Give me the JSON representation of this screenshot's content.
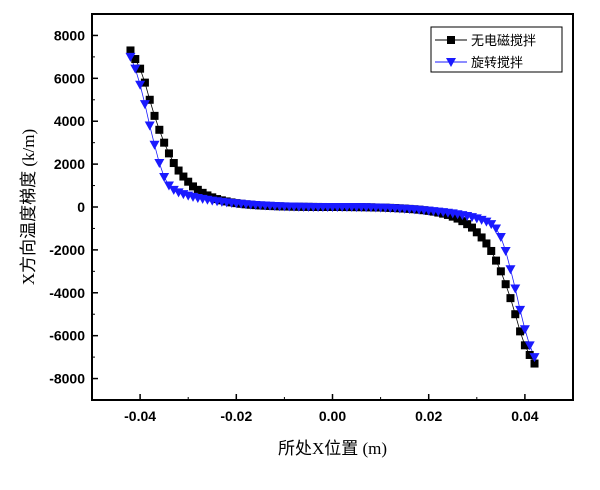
{
  "chart_data": {
    "type": "scatter",
    "title": "",
    "xlabel": "所处X位置 (m)",
    "ylabel": "X方向温度梯度 (k/m)",
    "xlim": [
      -0.05,
      0.05
    ],
    "ylim": [
      -9000,
      9000
    ],
    "xticks": [
      -0.04,
      -0.02,
      0.0,
      0.02,
      0.04
    ],
    "xtick_labels": [
      "-0.04",
      "-0.02",
      "0.00",
      "0.02",
      "0.04"
    ],
    "yticks": [
      -8000,
      -6000,
      -4000,
      -2000,
      0,
      2000,
      4000,
      6000,
      8000
    ],
    "ytick_labels": [
      "-8000",
      "-6000",
      "-4000",
      "-2000",
      "0",
      "2000",
      "4000",
      "6000",
      "8000"
    ],
    "legend_position": "top-right",
    "series": [
      {
        "name": "无电磁搅拌",
        "marker": "square",
        "color": "#000000",
        "line_color": "#000000",
        "x": [
          -0.042,
          -0.041,
          -0.04,
          -0.039,
          -0.038,
          -0.037,
          -0.036,
          -0.035,
          -0.034,
          -0.033,
          -0.032,
          -0.031,
          -0.03,
          -0.029,
          -0.028,
          -0.027,
          -0.026,
          -0.025,
          -0.024,
          -0.023,
          -0.022,
          -0.021,
          -0.02,
          -0.019,
          -0.018,
          -0.017,
          -0.016,
          -0.015,
          -0.014,
          -0.013,
          -0.012,
          -0.011,
          -0.01,
          -0.009,
          -0.008,
          -0.007,
          -0.006,
          -0.005,
          -0.004,
          -0.003,
          -0.002,
          -0.001,
          0.0,
          0.001,
          0.002,
          0.003,
          0.004,
          0.005,
          0.006,
          0.007,
          0.008,
          0.009,
          0.01,
          0.011,
          0.012,
          0.013,
          0.014,
          0.015,
          0.016,
          0.017,
          0.018,
          0.019,
          0.02,
          0.021,
          0.022,
          0.023,
          0.024,
          0.025,
          0.026,
          0.027,
          0.028,
          0.029,
          0.03,
          0.031,
          0.032,
          0.033,
          0.034,
          0.035,
          0.036,
          0.037,
          0.038,
          0.039,
          0.04,
          0.041,
          0.042
        ],
        "y": [
          7300,
          6900,
          6450,
          5800,
          5000,
          4250,
          3600,
          3000,
          2500,
          2050,
          1700,
          1420,
          1180,
          960,
          800,
          660,
          540,
          450,
          370,
          310,
          260,
          215,
          180,
          150,
          125,
          105,
          88,
          72,
          60,
          50,
          40,
          32,
          25,
          20,
          15,
          11,
          8,
          6,
          4,
          2,
          1,
          0,
          0,
          0,
          -1,
          -2,
          -4,
          -6,
          -8,
          -11,
          -15,
          -20,
          -25,
          -32,
          -40,
          -50,
          -60,
          -72,
          -88,
          -105,
          -125,
          -150,
          -180,
          -215,
          -260,
          -310,
          -370,
          -450,
          -540,
          -660,
          -800,
          -960,
          -1180,
          -1420,
          -1700,
          -2050,
          -2500,
          -3000,
          -3600,
          -4250,
          -5000,
          -5800,
          -6450,
          -6900,
          -7300
        ]
      },
      {
        "name": "旋转搅拌",
        "marker": "triangle-down",
        "color": "#1a1aff",
        "line_color": "#1a1aff",
        "x": [
          -0.042,
          -0.041,
          -0.04,
          -0.039,
          -0.038,
          -0.037,
          -0.036,
          -0.035,
          -0.034,
          -0.033,
          -0.032,
          -0.031,
          -0.03,
          -0.029,
          -0.028,
          -0.027,
          -0.026,
          -0.025,
          -0.024,
          -0.023,
          -0.022,
          -0.021,
          -0.02,
          -0.019,
          -0.018,
          -0.017,
          -0.016,
          -0.015,
          -0.014,
          -0.013,
          -0.012,
          -0.011,
          -0.01,
          -0.009,
          -0.008,
          -0.007,
          -0.006,
          -0.005,
          -0.004,
          -0.003,
          -0.002,
          -0.001,
          0.0,
          0.001,
          0.002,
          0.003,
          0.004,
          0.005,
          0.006,
          0.007,
          0.008,
          0.009,
          0.01,
          0.011,
          0.012,
          0.013,
          0.014,
          0.015,
          0.016,
          0.017,
          0.018,
          0.019,
          0.02,
          0.021,
          0.022,
          0.023,
          0.024,
          0.025,
          0.026,
          0.027,
          0.028,
          0.029,
          0.03,
          0.031,
          0.032,
          0.033,
          0.034,
          0.035,
          0.036,
          0.037,
          0.038,
          0.039,
          0.04,
          0.041,
          0.042
        ],
        "y": [
          7000,
          6450,
          5700,
          4800,
          3800,
          2900,
          2050,
          1400,
          1000,
          800,
          680,
          600,
          530,
          470,
          420,
          380,
          340,
          300,
          270,
          240,
          215,
          190,
          170,
          150,
          130,
          112,
          96,
          82,
          68,
          56,
          46,
          37,
          29,
          22,
          16,
          11,
          7,
          4,
          2,
          1,
          0,
          0,
          0,
          0,
          0,
          -1,
          -2,
          -4,
          -7,
          -11,
          -16,
          -22,
          -29,
          -37,
          -46,
          -56,
          -68,
          -82,
          -96,
          -112,
          -130,
          -150,
          -170,
          -190,
          -215,
          -240,
          -270,
          -300,
          -340,
          -380,
          -420,
          -470,
          -530,
          -600,
          -680,
          -800,
          -1000,
          -1400,
          -2050,
          -2900,
          -3800,
          -4800,
          -5700,
          -6450,
          -7000
        ]
      }
    ]
  }
}
